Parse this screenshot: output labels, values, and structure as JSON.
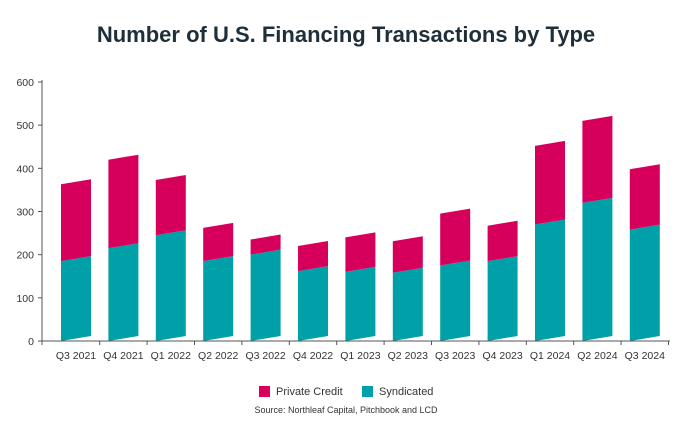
{
  "chart_data": {
    "type": "bar",
    "stacked": true,
    "title": "Number of U.S. Financing Transactions by Type",
    "categories": [
      "Q3 2021",
      "Q4 2021",
      "Q1 2022",
      "Q2 2022",
      "Q3 2022",
      "Q4 2022",
      "Q1 2023",
      "Q2 2023",
      "Q3 2023",
      "Q4 2023",
      "Q1 2024",
      "Q2 2024",
      "Q3 2024"
    ],
    "series": [
      {
        "name": "Syndicated",
        "color": "#00a0a8",
        "values": [
          185,
          215,
          245,
          185,
          200,
          162,
          160,
          158,
          175,
          185,
          270,
          320,
          258
        ]
      },
      {
        "name": "Private Credit",
        "color": "#d6005c",
        "values": [
          178,
          205,
          128,
          77,
          35,
          58,
          80,
          73,
          120,
          82,
          182,
          190,
          140
        ]
      }
    ],
    "ylim": [
      0,
      600
    ],
    "yticks": [
      0,
      100,
      200,
      300,
      400,
      500,
      600
    ],
    "xlabel": "",
    "ylabel": "",
    "legend": [
      {
        "label": "Private Credit",
        "color": "#d6005c"
      },
      {
        "label": "Syndicated",
        "color": "#00a0a8"
      }
    ],
    "legend_position": "bottom",
    "source": "Source: Northleaf Capital, Pitchbook and LCD"
  }
}
